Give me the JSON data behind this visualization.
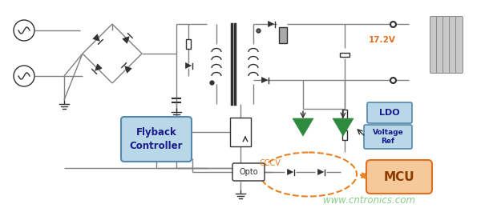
{
  "bg_color": "#ffffff",
  "line_color": "#808080",
  "dark_line": "#303030",
  "green_color": "#2e8b3e",
  "orange_fill": "#f5c99a",
  "orange_edge": "#e07020",
  "orange_dash": "#e88020",
  "blue_box_fill": "#b8d8e8",
  "blue_box_edge": "#5588aa",
  "blue_text": "#1a1a8c",
  "dark_text": "#303030",
  "voltage_color": "#e07020",
  "website_color": "#88cc88",
  "ldo_label": "LDO",
  "vref_label": "Voltage\nRef",
  "mcu_label": "MCU",
  "flyback_label": "Flyback\nController",
  "opto_label": "Opto",
  "cccv_label": "CCCV",
  "voltage_label": "17.2V",
  "website": "www.cntronics.com"
}
